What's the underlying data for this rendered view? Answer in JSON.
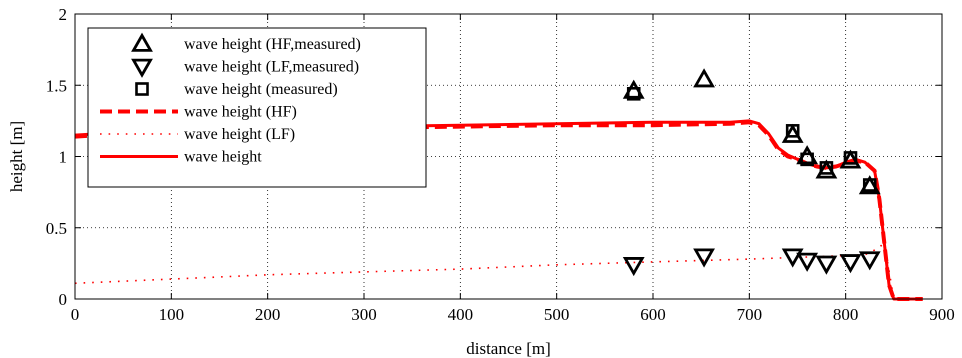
{
  "chart_data": {
    "type": "line",
    "title": "",
    "xlabel": "distance [m]",
    "ylabel": "height [m]",
    "xlim": [
      0,
      900
    ],
    "ylim": [
      0,
      2
    ],
    "xticks": [
      0,
      100,
      200,
      300,
      400,
      500,
      600,
      700,
      800,
      900
    ],
    "yticks": [
      0,
      0.5,
      1,
      1.5,
      2
    ],
    "xtick_labels": [
      "0",
      "100",
      "200",
      "300",
      "400",
      "500",
      "600",
      "700",
      "800",
      "900"
    ],
    "ytick_labels": [
      "0",
      "0.5",
      "1",
      "1.5",
      "2"
    ],
    "grid": true,
    "legend_position": "top-left",
    "series": [
      {
        "name": "wave height (HF,measured)",
        "style": "marker-triangle-up",
        "color": "#000000",
        "x": [
          580,
          653,
          745,
          760,
          780,
          805,
          825
        ],
        "y": [
          1.46,
          1.54,
          1.15,
          1.0,
          0.9,
          0.97,
          0.79
        ]
      },
      {
        "name": "wave height (LF,measured)",
        "style": "marker-triangle-down",
        "color": "#000000",
        "x": [
          580,
          653,
          745,
          760,
          780,
          805,
          825
        ],
        "y": [
          0.24,
          0.3,
          0.3,
          0.27,
          0.25,
          0.26,
          0.28
        ]
      },
      {
        "name": "wave height (measured)",
        "style": "marker-square",
        "color": "#000000",
        "x": [
          580,
          745,
          760,
          780,
          805,
          825
        ],
        "y": [
          1.44,
          1.18,
          0.98,
          0.92,
          0.99,
          0.8
        ]
      },
      {
        "name": "wave height (HF)",
        "style": "dashed",
        "color": "#ff0000",
        "x": [
          0,
          50,
          100,
          200,
          300,
          400,
          500,
          600,
          680,
          700,
          710,
          720,
          730,
          740,
          750,
          760,
          770,
          780,
          790,
          800,
          810,
          820,
          830,
          835,
          840,
          845,
          850,
          880
        ],
        "y": [
          1.14,
          1.16,
          1.17,
          1.19,
          1.2,
          1.21,
          1.22,
          1.22,
          1.23,
          1.24,
          1.22,
          1.15,
          1.05,
          1.0,
          0.98,
          0.95,
          0.93,
          0.92,
          0.93,
          0.95,
          0.97,
          0.96,
          0.9,
          0.7,
          0.4,
          0.1,
          0.0,
          0.0
        ]
      },
      {
        "name": "wave height (LF)",
        "style": "dotted",
        "color": "#ff0000",
        "x": [
          0,
          100,
          200,
          300,
          400,
          500,
          600,
          700,
          780,
          820,
          835,
          840,
          845,
          850,
          880
        ],
        "y": [
          0.11,
          0.14,
          0.17,
          0.19,
          0.21,
          0.24,
          0.26,
          0.28,
          0.3,
          0.31,
          0.36,
          0.4,
          0.2,
          0.0,
          0.0
        ]
      },
      {
        "name": "wave height",
        "style": "solid",
        "color": "#ff0000",
        "x": [
          0,
          50,
          100,
          200,
          300,
          400,
          500,
          600,
          680,
          700,
          710,
          720,
          730,
          740,
          750,
          760,
          770,
          780,
          790,
          800,
          810,
          820,
          830,
          835,
          840,
          845,
          850,
          880
        ],
        "y": [
          1.15,
          1.17,
          1.18,
          1.2,
          1.21,
          1.22,
          1.23,
          1.24,
          1.24,
          1.25,
          1.23,
          1.16,
          1.06,
          1.01,
          0.98,
          0.95,
          0.93,
          0.92,
          0.93,
          0.96,
          0.98,
          0.96,
          0.9,
          0.7,
          0.4,
          0.1,
          0.0,
          0.0
        ]
      }
    ]
  }
}
